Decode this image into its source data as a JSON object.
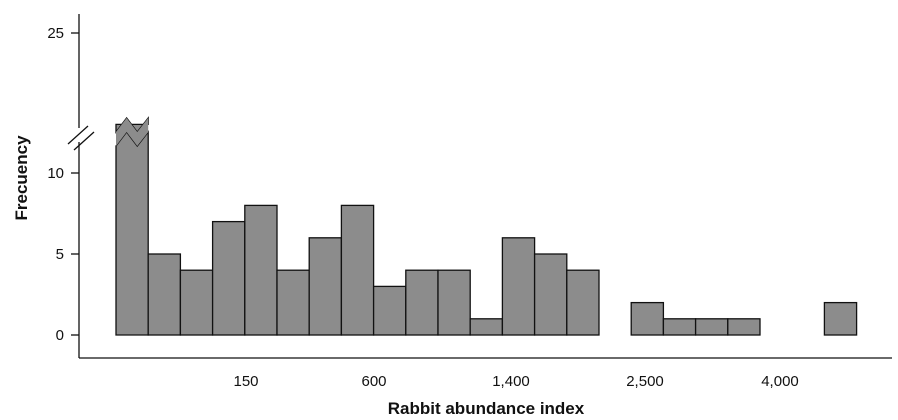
{
  "chart_data": {
    "type": "bar",
    "title": "",
    "xlabel": "Rabbit abundance index",
    "ylabel": "Frecuency",
    "x_tick_labels": [
      "150",
      "600",
      "1,400",
      "2,500",
      "4,000"
    ],
    "y_tick_labels": [
      "0",
      "5",
      "10",
      "25"
    ],
    "y_axis_break": [
      12,
      23
    ],
    "ylim": [
      0,
      26
    ],
    "grid": false,
    "legend": "none",
    "bar_color": "#8c8c8c",
    "outline_color": "#111111",
    "values": [
      24,
      5,
      4,
      7,
      8,
      4,
      6,
      8,
      3,
      4,
      4,
      1,
      6,
      5,
      4,
      0,
      2,
      1,
      1,
      1,
      0,
      0,
      2
    ]
  }
}
